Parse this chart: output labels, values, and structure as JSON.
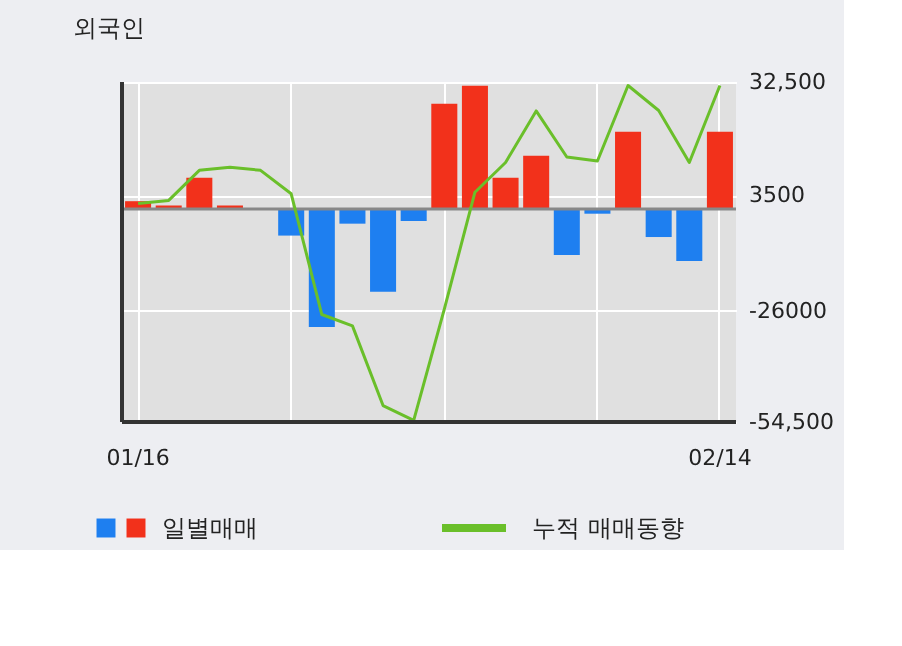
{
  "chart_data": {
    "type": "bar",
    "title": "외국인",
    "categories": [
      "01/16",
      null,
      null,
      null,
      null,
      null,
      null,
      null,
      null,
      null,
      null,
      null,
      null,
      null,
      null,
      null,
      null,
      null,
      null,
      "02/14"
    ],
    "series": [
      {
        "name": "일별매매",
        "values": [
          2000,
          900,
          8000,
          900,
          0,
          -6800,
          -30200,
          -3750,
          -21150,
          -3070,
          26950,
          31560,
          8000,
          13650,
          -11770,
          -1200,
          19800,
          -7170,
          -13300,
          19800
        ],
        "colors": [
          "#f2311b",
          "#f2311b",
          "#f2311b",
          "#f2311b",
          "#f2311b",
          "#1e7ff0",
          "#1e7ff0",
          "#1e7ff0",
          "#1e7ff0",
          "#1e7ff0",
          "#f2311b",
          "#f2311b",
          "#f2311b",
          "#f2311b",
          "#1e7ff0",
          "#1e7ff0",
          "#f2311b",
          "#1e7ff0",
          "#1e7ff0",
          "#f2311b"
        ]
      },
      {
        "name": "누적 매매동향",
        "type": "line",
        "color": "#6abf2a",
        "values": [
          1400,
          2200,
          9900,
          10700,
          9900,
          3900,
          -27000,
          -29900,
          -50300,
          -54100,
          -25600,
          4300,
          11900,
          25100,
          13300,
          12300,
          31600,
          25200,
          11900,
          31600
        ]
      }
    ],
    "ylim": [
      -54500,
      32500
    ],
    "yticks": [
      {
        "value": 32500,
        "label": "32,500"
      },
      3500,
      -26000,
      {
        "value": -54500,
        "label": "-54,500"
      }
    ],
    "grid": true,
    "legend": "bottom"
  }
}
